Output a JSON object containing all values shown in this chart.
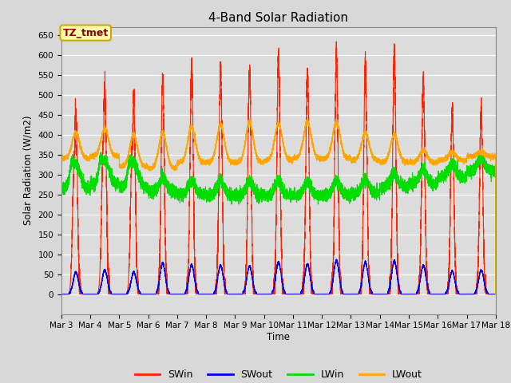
{
  "title": "4-Band Solar Radiation",
  "ylabel": "Solar Radiation (W/m2)",
  "xlabel": "Time",
  "annotation": "TZ_tmet",
  "ylim": [
    -50,
    670
  ],
  "yticks": [
    0,
    50,
    100,
    150,
    200,
    250,
    300,
    350,
    400,
    450,
    500,
    550,
    600,
    650
  ],
  "colors": {
    "SWin": "#FF2200",
    "SWout": "#0000EE",
    "LWin": "#00DD00",
    "LWout": "#FFA500"
  },
  "background_color": "#DCDCDC",
  "grid_color": "#FFFFFF",
  "fig_bg": "#D8D8D8",
  "start_day": 3,
  "n_days": 15,
  "SWin_peaks": [
    460,
    510,
    490,
    545,
    570,
    565,
    560,
    595,
    560,
    603,
    580,
    603,
    535,
    463,
    460
  ],
  "SWout_peaks": [
    55,
    60,
    55,
    78,
    73,
    72,
    70,
    80,
    75,
    85,
    80,
    83,
    72,
    58,
    60
  ],
  "LWin_base": [
    265,
    275,
    268,
    258,
    250,
    248,
    247,
    247,
    247,
    249,
    253,
    268,
    278,
    293,
    308
  ],
  "LWout_base": [
    340,
    345,
    320,
    315,
    330,
    330,
    330,
    335,
    340,
    340,
    335,
    330,
    330,
    335,
    345
  ],
  "LWout_peak": [
    405,
    415,
    400,
    405,
    420,
    425,
    430,
    428,
    432,
    430,
    405,
    400,
    360,
    355,
    355
  ]
}
